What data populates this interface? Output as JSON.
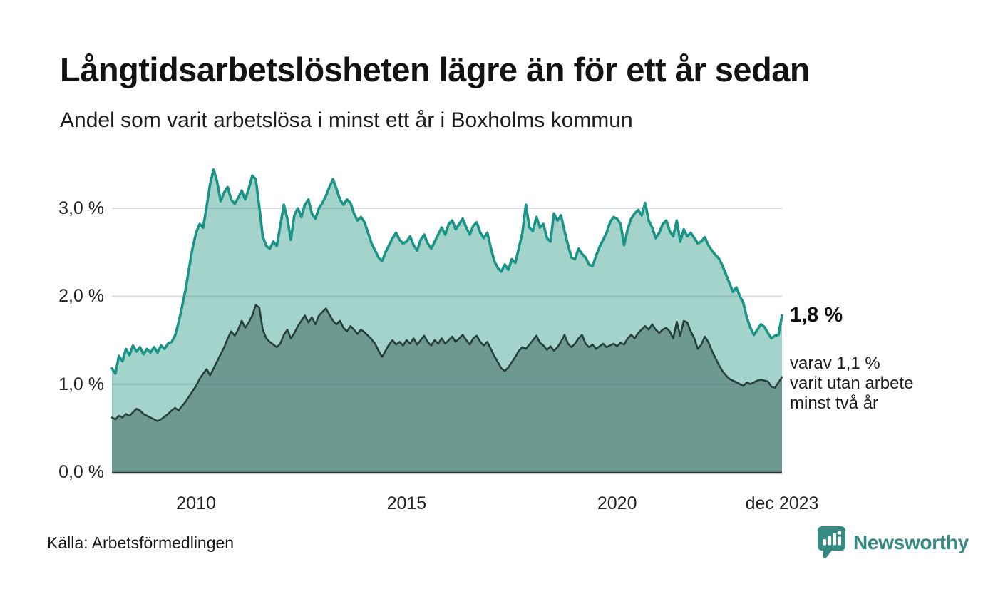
{
  "header": {
    "title": "Långtidsarbetslösheten lägre än för ett år sedan",
    "subtitle": "Andel som varit arbetslösa i minst ett år i Boxholms kommun"
  },
  "annotations": {
    "latest_value": "1,8 %",
    "note": "varav 1,1 %\nvarit utan arbete\nminst två år"
  },
  "footer": {
    "source": "Källa: Arbetsförmedlingen",
    "brand": "Newsworthy"
  },
  "colors": {
    "line_one_year": "#1a9486",
    "fill_one_year": "#a3d3cb",
    "line_two_years": "#26403a",
    "fill_two_years": "#6e9990",
    "gridline": "rgba(90,112,123,0.22)",
    "axis": "#2b3634",
    "brand_teal": "#368a82"
  },
  "chart_data": {
    "type": "area",
    "title": "Långtidsarbetslösheten lägre än för ett år sedan",
    "subtitle": "Andel som varit arbetslösa i minst ett år i Boxholms kommun",
    "frequency": "monthly",
    "start": "2008-01",
    "end": "2023-12",
    "unit": "%",
    "ylim": [
      0,
      3.6
    ],
    "grid": true,
    "legend": "none",
    "y_ticks": [
      {
        "label": "0,0 %",
        "value": 0
      },
      {
        "label": "1,0 %",
        "value": 1
      },
      {
        "label": "2,0 %",
        "value": 2
      },
      {
        "label": "3,0 %",
        "value": 3
      }
    ],
    "x_ticks": [
      {
        "label": "2010",
        "month_index": 24
      },
      {
        "label": "2015",
        "month_index": 84
      },
      {
        "label": "2020",
        "month_index": 144
      },
      {
        "label": "dec 2023",
        "month_index": 191
      }
    ],
    "series": [
      {
        "name": "Arbetslösa minst ett år",
        "latest_label": "1,8 %",
        "values": [
          1.18,
          1.12,
          1.32,
          1.26,
          1.4,
          1.33,
          1.44,
          1.37,
          1.42,
          1.34,
          1.4,
          1.36,
          1.42,
          1.36,
          1.44,
          1.4,
          1.46,
          1.48,
          1.55,
          1.7,
          1.88,
          2.08,
          2.32,
          2.55,
          2.72,
          2.82,
          2.78,
          3.02,
          3.28,
          3.44,
          3.3,
          3.08,
          3.18,
          3.24,
          3.1,
          3.05,
          3.12,
          3.2,
          3.1,
          3.22,
          3.37,
          3.33,
          3.02,
          2.68,
          2.57,
          2.54,
          2.62,
          2.57,
          2.8,
          3.04,
          2.88,
          2.64,
          2.92,
          3.0,
          2.9,
          3.04,
          3.1,
          2.94,
          2.88,
          3.0,
          3.06,
          3.14,
          3.24,
          3.33,
          3.22,
          3.1,
          3.04,
          3.1,
          3.06,
          2.94,
          2.86,
          2.9,
          2.84,
          2.72,
          2.6,
          2.52,
          2.44,
          2.4,
          2.5,
          2.58,
          2.66,
          2.72,
          2.64,
          2.6,
          2.62,
          2.68,
          2.58,
          2.52,
          2.64,
          2.7,
          2.6,
          2.54,
          2.62,
          2.7,
          2.78,
          2.7,
          2.82,
          2.86,
          2.76,
          2.82,
          2.88,
          2.78,
          2.7,
          2.8,
          2.84,
          2.72,
          2.66,
          2.72,
          2.55,
          2.4,
          2.32,
          2.28,
          2.36,
          2.3,
          2.42,
          2.38,
          2.55,
          2.72,
          3.04,
          2.78,
          2.74,
          2.9,
          2.78,
          2.82,
          2.66,
          2.62,
          2.94,
          2.86,
          2.92,
          2.74,
          2.58,
          2.44,
          2.42,
          2.54,
          2.48,
          2.44,
          2.36,
          2.34,
          2.46,
          2.56,
          2.64,
          2.72,
          2.84,
          2.9,
          2.88,
          2.82,
          2.58,
          2.76,
          2.88,
          2.94,
          2.98,
          2.92,
          3.06,
          2.86,
          2.78,
          2.66,
          2.72,
          2.82,
          2.86,
          2.74,
          2.68,
          2.86,
          2.62,
          2.76,
          2.68,
          2.72,
          2.66,
          2.6,
          2.62,
          2.67,
          2.58,
          2.52,
          2.47,
          2.43,
          2.35,
          2.25,
          2.15,
          2.05,
          2.1,
          2.0,
          1.92,
          1.75,
          1.64,
          1.56,
          1.62,
          1.68,
          1.65,
          1.58,
          1.52,
          1.55,
          1.56,
          1.78
        ]
      },
      {
        "name": "Arbetslösa minst två år",
        "latest_label": "1,1 %",
        "values": [
          0.62,
          0.6,
          0.64,
          0.62,
          0.66,
          0.64,
          0.68,
          0.72,
          0.7,
          0.66,
          0.64,
          0.62,
          0.6,
          0.58,
          0.6,
          0.63,
          0.66,
          0.7,
          0.73,
          0.7,
          0.75,
          0.8,
          0.86,
          0.92,
          0.98,
          1.06,
          1.12,
          1.17,
          1.1,
          1.18,
          1.26,
          1.34,
          1.42,
          1.52,
          1.6,
          1.55,
          1.62,
          1.72,
          1.64,
          1.7,
          1.78,
          1.9,
          1.87,
          1.62,
          1.52,
          1.48,
          1.45,
          1.42,
          1.46,
          1.56,
          1.62,
          1.52,
          1.58,
          1.66,
          1.72,
          1.78,
          1.7,
          1.76,
          1.68,
          1.78,
          1.82,
          1.86,
          1.79,
          1.72,
          1.68,
          1.72,
          1.64,
          1.6,
          1.66,
          1.62,
          1.57,
          1.62,
          1.59,
          1.55,
          1.51,
          1.46,
          1.38,
          1.31,
          1.38,
          1.45,
          1.5,
          1.45,
          1.48,
          1.44,
          1.5,
          1.46,
          1.52,
          1.45,
          1.5,
          1.55,
          1.48,
          1.44,
          1.5,
          1.46,
          1.52,
          1.46,
          1.5,
          1.54,
          1.48,
          1.52,
          1.56,
          1.5,
          1.45,
          1.52,
          1.55,
          1.48,
          1.44,
          1.48,
          1.4,
          1.32,
          1.25,
          1.18,
          1.15,
          1.19,
          1.25,
          1.31,
          1.38,
          1.42,
          1.4,
          1.45,
          1.5,
          1.55,
          1.47,
          1.44,
          1.39,
          1.43,
          1.38,
          1.42,
          1.48,
          1.56,
          1.46,
          1.42,
          1.46,
          1.52,
          1.56,
          1.46,
          1.42,
          1.45,
          1.4,
          1.43,
          1.46,
          1.42,
          1.44,
          1.46,
          1.43,
          1.47,
          1.45,
          1.52,
          1.56,
          1.52,
          1.58,
          1.62,
          1.66,
          1.62,
          1.68,
          1.62,
          1.58,
          1.62,
          1.64,
          1.6,
          1.52,
          1.71,
          1.55,
          1.72,
          1.7,
          1.6,
          1.52,
          1.4,
          1.45,
          1.54,
          1.48,
          1.38,
          1.3,
          1.22,
          1.15,
          1.1,
          1.06,
          1.04,
          1.02,
          1.0,
          0.98,
          1.02,
          1.0,
          1.02,
          1.04,
          1.05,
          1.04,
          1.03,
          0.97,
          0.96,
          1.02,
          1.08
        ]
      }
    ]
  }
}
